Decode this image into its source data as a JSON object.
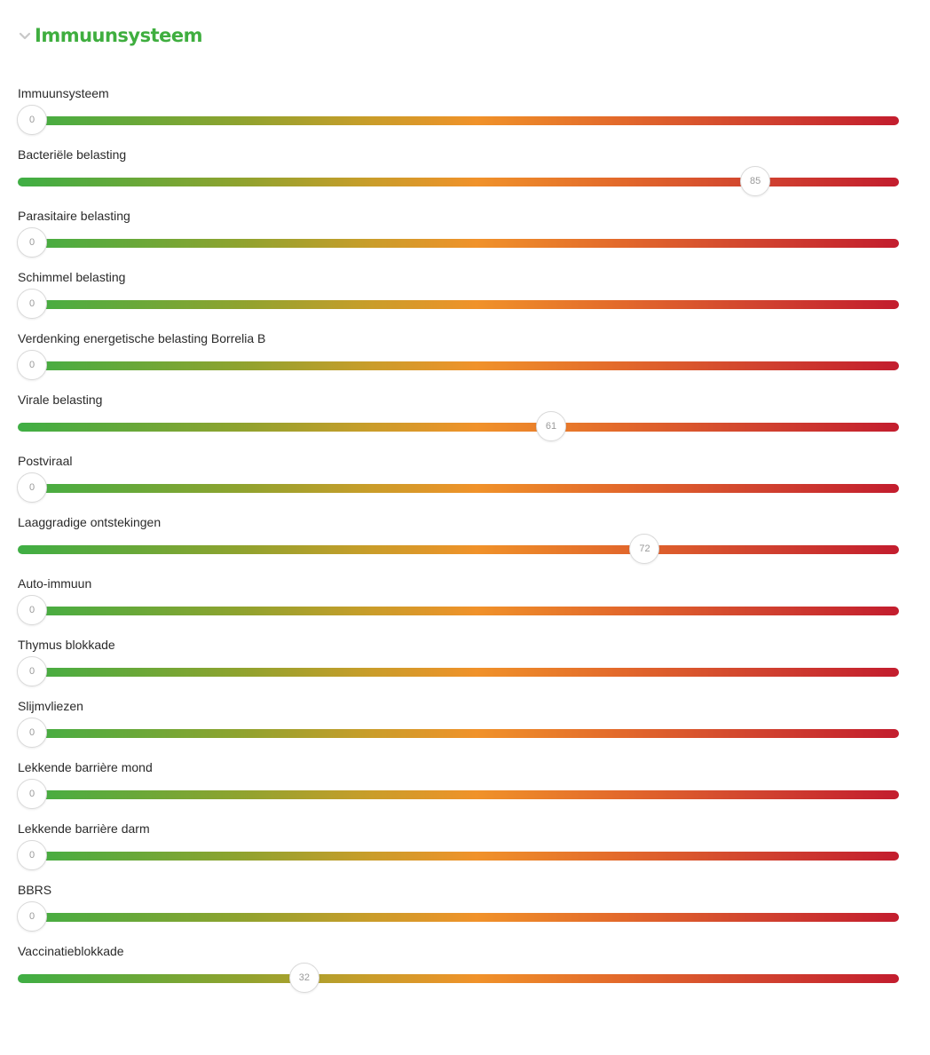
{
  "section": {
    "title": "Immuunsysteem",
    "chevron_icon": "chevron-down-icon",
    "title_color": "#3fae3f"
  },
  "slider_scale": {
    "min": 0,
    "max": 100
  },
  "gradient_colors": [
    "#3fae44",
    "#8ea32f",
    "#c99d2a",
    "#f0922a",
    "#e36a2b",
    "#d1432f",
    "#c31d2e"
  ],
  "sliders": [
    {
      "label": "Immuunsysteem",
      "value": 0
    },
    {
      "label": "Bacteriële belasting",
      "value": 85
    },
    {
      "label": "Parasitaire belasting",
      "value": 0
    },
    {
      "label": "Schimmel belasting",
      "value": 0
    },
    {
      "label": "Verdenking energetische belasting Borrelia B",
      "value": 0
    },
    {
      "label": "Virale belasting",
      "value": 61
    },
    {
      "label": "Postviraal",
      "value": 0
    },
    {
      "label": "Laaggradige ontstekingen",
      "value": 72
    },
    {
      "label": "Auto-immuun",
      "value": 0
    },
    {
      "label": "Thymus blokkade",
      "value": 0
    },
    {
      "label": "Slijmvliezen",
      "value": 0
    },
    {
      "label": "Lekkende barrière mond",
      "value": 0
    },
    {
      "label": "Lekkende barrière darm",
      "value": 0
    },
    {
      "label": "BBRS",
      "value": 0
    },
    {
      "label": "Vaccinatieblokkade",
      "value": 32
    }
  ]
}
